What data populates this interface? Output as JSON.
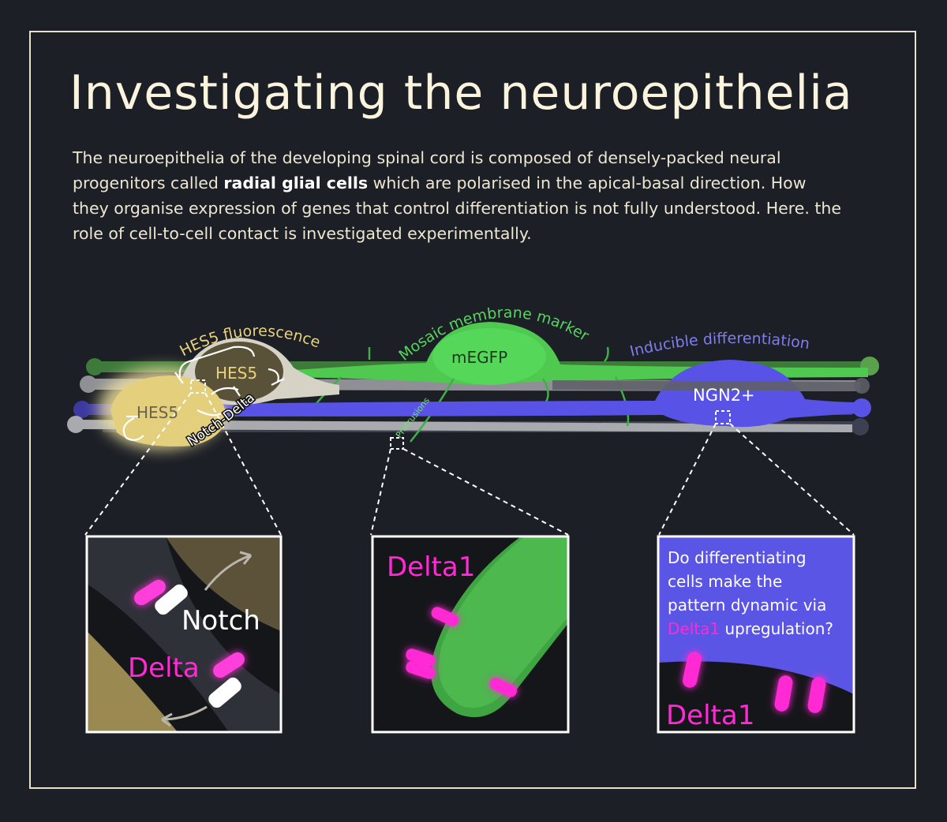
{
  "title": "Investigating the neuroepithelia",
  "intro": {
    "part1": "The neuroepithelia of the developing spinal cord is composed of densely-packed neural progenitors called ",
    "bold": "radial glial cells",
    "part2": " which are polarised in the apical-basal direction. How they organise expression of genes that control differentiation is not fully understood. Here. the role of cell-to-cell contact is investigated experimentally."
  },
  "labels": {
    "hes5_fluorescence": "HES5 fluorescence",
    "hes5_a": "HES5",
    "hes5_b": "HES5",
    "notch_delta": "Notch-Delta",
    "mosaic_marker": "Mosaic membrane marker",
    "megfp": "mEGFP",
    "protrusions": "Protrusions",
    "inducible_diff": "Inducible differentiation",
    "ngn2": "NGN2+"
  },
  "panels": {
    "left": {
      "notch": "Notch",
      "delta": "Delta"
    },
    "middle": {
      "delta1": "Delta1"
    },
    "right": {
      "question_line1": "Do differentiating",
      "question_line2": "cells make the",
      "question_line3": "pattern dynamic via",
      "question_mag": "Delta1",
      "question_line4_rest": " upregulation?",
      "delta1": "Delta1"
    }
  },
  "colors": {
    "background": "#1c1f26",
    "cream": "#f3ecd7",
    "hes5_yellow": "#e7cf7a",
    "green": "#58d35f",
    "blue": "#5b55e6",
    "magenta": "#ff2ad4"
  }
}
